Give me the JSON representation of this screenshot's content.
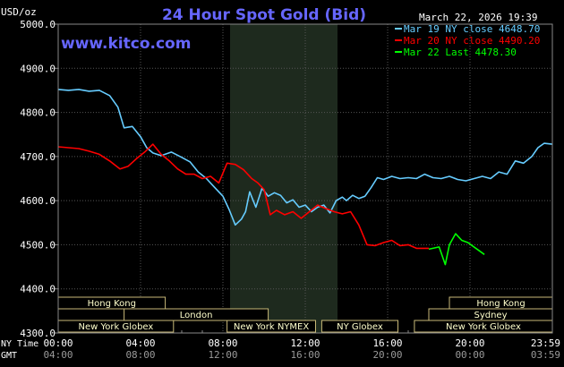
{
  "chart_data": {
    "type": "line",
    "title": "24 Hour Spot Gold (Bid)",
    "datetime": "March 22, 2026 19:39",
    "watermark": "www.kitco.com",
    "ylabel": "USD/oz",
    "ylim": [
      4300,
      5000
    ],
    "y_ticks": [
      "5000.0",
      "4900.0",
      "4800.0",
      "4700.0",
      "4600.0",
      "4500.0",
      "4400.0",
      "4300.0"
    ],
    "x_range_hours": [
      0,
      24
    ],
    "x_axis_rows": [
      {
        "label": "NY Time",
        "ticks": [
          "00:00",
          "04:00",
          "08:00",
          "12:00",
          "16:00",
          "20:00",
          "23:59"
        ]
      },
      {
        "label": "GMT",
        "ticks": [
          "04:00",
          "08:00",
          "12:00",
          "16:00",
          "20:00",
          "00:00",
          "03:59"
        ]
      }
    ],
    "legend_position": "top-right",
    "market_sessions": [
      {
        "name": "Hong Kong",
        "rows": 1,
        "start": 0,
        "end": 5.2
      },
      {
        "name": "London",
        "rows": 2,
        "start": 3.2,
        "end": 10.2
      },
      {
        "name": "New York Globex",
        "rows": 3,
        "start": 0,
        "end": 5.6
      },
      {
        "name": "New York NYMEX",
        "rows": 3,
        "start": 8.2,
        "end": 12.5
      },
      {
        "name": "NY Globex",
        "rows": 3,
        "start": 12.8,
        "end": 16.5
      },
      {
        "name": "Hong Kong",
        "rows": 1,
        "start": 19.0,
        "end": 24
      },
      {
        "name": "Sydney",
        "rows": 2,
        "start": 18.0,
        "end": 24
      },
      {
        "name": "New York Globex",
        "rows": 3,
        "start": 17.3,
        "end": 24
      }
    ],
    "series": [
      {
        "name": "Mar 19 NY close 4648.70",
        "color": "#66ccff",
        "x": [
          0,
          0.5,
          1,
          1.5,
          2,
          2.5,
          2.9,
          3.2,
          3.6,
          4.0,
          4.3,
          4.6,
          5.0,
          5.5,
          6.0,
          6.4,
          6.8,
          7.2,
          7.6,
          8.0,
          8.3,
          8.6,
          8.9,
          9.1,
          9.3,
          9.6,
          9.9,
          10.2,
          10.5,
          10.8,
          11.1,
          11.4,
          11.7,
          12.0,
          12.3,
          12.6,
          12.9,
          13.2,
          13.5,
          13.8,
          14.0,
          14.3,
          14.6,
          14.9,
          15.2,
          15.5,
          15.8,
          16.2,
          16.6,
          17.0,
          17.4,
          17.8,
          18.2,
          18.6,
          19.0,
          19.4,
          19.8,
          20.2,
          20.6,
          21.0,
          21.4,
          21.8,
          22.2,
          22.6,
          23.0,
          23.3,
          23.6,
          23.99
        ],
        "values": [
          4852,
          4850,
          4852,
          4848,
          4850,
          4838,
          4812,
          4765,
          4768,
          4745,
          4720,
          4708,
          4702,
          4710,
          4698,
          4688,
          4665,
          4650,
          4630,
          4610,
          4580,
          4545,
          4558,
          4575,
          4620,
          4585,
          4628,
          4610,
          4618,
          4612,
          4595,
          4602,
          4585,
          4590,
          4575,
          4585,
          4590,
          4572,
          4600,
          4608,
          4600,
          4612,
          4605,
          4610,
          4630,
          4652,
          4648,
          4655,
          4650,
          4652,
          4650,
          4660,
          4652,
          4650,
          4655,
          4648,
          4645,
          4650,
          4655,
          4650,
          4665,
          4660,
          4690,
          4685,
          4700,
          4720,
          4730,
          4728
        ]
      },
      {
        "name": "Mar 20 NY close 4490.20",
        "color": "#ff0000",
        "x": [
          0,
          0.5,
          1,
          1.5,
          2,
          2.5,
          3.0,
          3.4,
          3.8,
          4.2,
          4.6,
          5.0,
          5.4,
          5.8,
          6.2,
          6.6,
          7.0,
          7.4,
          7.8,
          8.2,
          8.6,
          9.0,
          9.4,
          9.7,
          10.0,
          10.3,
          10.6,
          11.0,
          11.4,
          11.8,
          12.2,
          12.6,
          13.0,
          13.4,
          13.8,
          14.2,
          14.6,
          15.0,
          15.4,
          15.8,
          16.2,
          16.6,
          17.0,
          17.4,
          18.0
        ],
        "values": [
          4722,
          4720,
          4718,
          4712,
          4705,
          4690,
          4672,
          4678,
          4695,
          4710,
          4728,
          4705,
          4690,
          4672,
          4660,
          4660,
          4650,
          4655,
          4640,
          4685,
          4682,
          4670,
          4650,
          4640,
          4625,
          4568,
          4578,
          4568,
          4575,
          4560,
          4575,
          4590,
          4582,
          4575,
          4570,
          4575,
          4545,
          4500,
          4498,
          4505,
          4510,
          4498,
          4500,
          4492,
          4492
        ]
      },
      {
        "name": "Mar 22 Last 4478.30",
        "color": "#00ff00",
        "x": [
          18.0,
          18.5,
          18.8,
          19.0,
          19.3,
          19.6,
          19.9,
          20.1,
          20.4,
          20.7
        ],
        "values": [
          4490,
          4495,
          4455,
          4500,
          4525,
          4510,
          4505,
          4498,
          4488,
          4478
        ]
      }
    ]
  }
}
